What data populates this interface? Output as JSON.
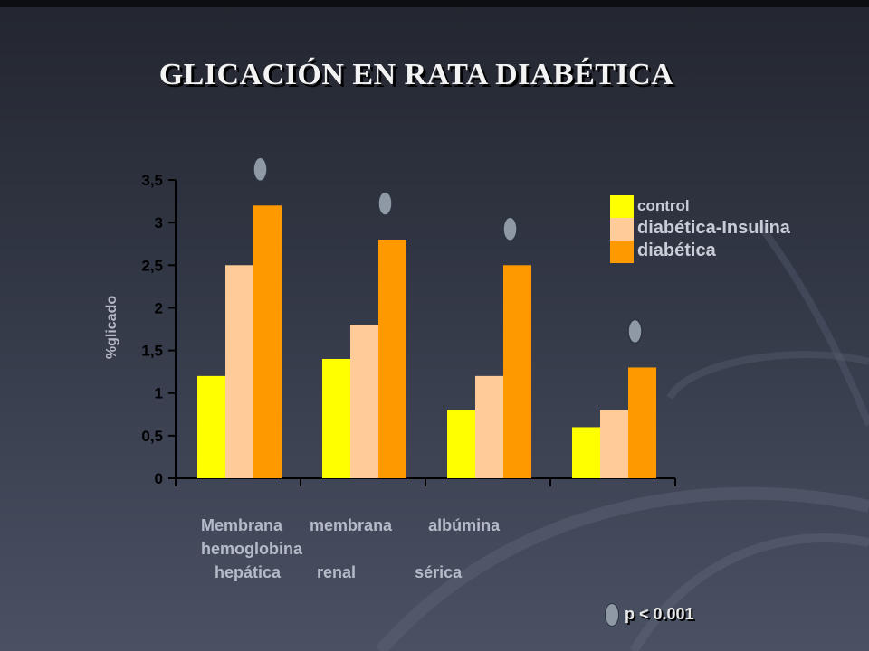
{
  "slide": {
    "title": "GLICACIÓN EN RATA DIABÉTICA",
    "category_lines": [
      "Membrana      membrana        albúmina",
      "hemoglobina",
      "   hepática        renal             sérica"
    ],
    "significance_note": "p < 0.001",
    "colors": {
      "control": "#ffff00",
      "diabetica_insulina": "#ffcc99",
      "diabetica": "#ff9900",
      "marker": "#8e99a5"
    }
  },
  "chart_data": {
    "type": "bar",
    "ylabel": "%glicado",
    "ylim": [
      0,
      3.5
    ],
    "yticks": [
      "0",
      "0,5",
      "1",
      "1,5",
      "2",
      "2,5",
      "3",
      "3,5"
    ],
    "ytick_values": [
      0,
      0.5,
      1,
      1.5,
      2,
      2.5,
      3,
      3.5
    ],
    "legend_position": "top-right",
    "series": [
      {
        "name": "control",
        "values": [
          1.2,
          1.4,
          0.8,
          0.6
        ]
      },
      {
        "name": "diabética-Insulina",
        "values": [
          2.5,
          1.8,
          1.2,
          0.8
        ]
      },
      {
        "name": "diabética",
        "values": [
          3.2,
          2.8,
          2.5,
          1.3
        ]
      }
    ],
    "significance_markers": [
      true,
      true,
      true,
      true
    ]
  }
}
